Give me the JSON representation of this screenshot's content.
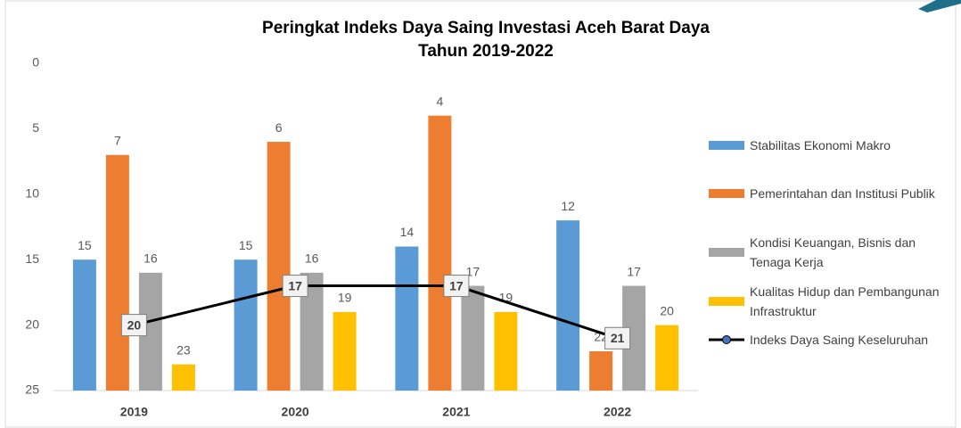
{
  "chart_data": {
    "type": "bar",
    "title": [
      "Peringkat Indeks Daya Saing Investasi Aceh Barat Daya",
      "Tahun 2019-2022"
    ],
    "categories": [
      "2019",
      "2020",
      "2021",
      "2022"
    ],
    "ylim": [
      0,
      25
    ],
    "yticks": [
      0,
      5,
      10,
      15,
      20,
      25
    ],
    "y_inverted": true,
    "grid": false,
    "legend": "right",
    "series": [
      {
        "name": "Stabilitas Ekonomi Makro",
        "type": "bar",
        "color": "#5b9bd5",
        "values": [
          15,
          15,
          14,
          12
        ]
      },
      {
        "name": "Pemerintahan dan Institusi Publik",
        "type": "bar",
        "color": "#ed7d31",
        "values": [
          7,
          6,
          4,
          22
        ]
      },
      {
        "name": "Kondisi Keuangan, Bisnis dan Tenaga Kerja",
        "type": "bar",
        "color": "#a5a5a5",
        "values": [
          16,
          16,
          17,
          17
        ]
      },
      {
        "name": "Kualitas Hidup dan Pembangunan Infrastruktur",
        "type": "bar",
        "color": "#ffc000",
        "values": [
          23,
          19,
          19,
          20
        ]
      },
      {
        "name": "Indeks Daya Saing Keseluruhan",
        "type": "line",
        "color": "#000000",
        "marker_color": "#4472c4",
        "values": [
          20,
          17,
          17,
          21
        ]
      }
    ]
  }
}
